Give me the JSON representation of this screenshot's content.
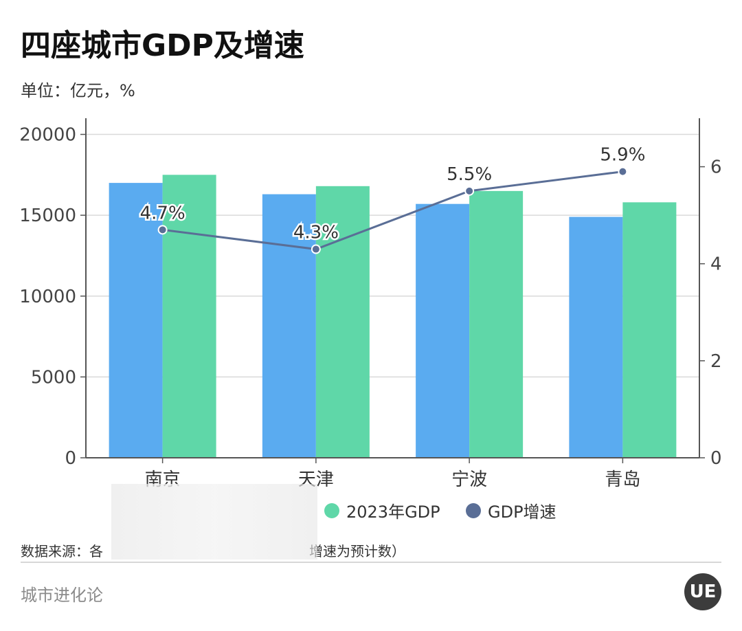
{
  "title": "四座城市GDP及增速",
  "subtitle": "单位：亿元，%",
  "source": "数据来源：各",
  "source_tail": "增速为预计数）",
  "footer": "城市进化论",
  "logo_text": "UE",
  "colors": {
    "gdp": "#5aabf0",
    "gdp2023": "#5fd7a8",
    "growth": "#5a6e96"
  },
  "chart_data": {
    "type": "bar",
    "categories": [
      "南京",
      "天津",
      "宁波",
      "青岛"
    ],
    "series": [
      {
        "name": "",
        "type": "bar",
        "axis": "left",
        "values": [
          17000,
          16300,
          15700,
          14900
        ]
      },
      {
        "name": "2023年GDP",
        "type": "bar",
        "axis": "left",
        "values": [
          17500,
          16800,
          16500,
          15800
        ]
      },
      {
        "name": "GDP增速",
        "type": "line",
        "axis": "right",
        "values": [
          4.7,
          4.3,
          5.5,
          5.9
        ],
        "labels": [
          "4.7%",
          "4.3%",
          "5.5%",
          "5.9%"
        ]
      }
    ],
    "y_left": {
      "ticks": [
        "0",
        "5000",
        "10000",
        "15000",
        "20000"
      ],
      "range": [
        0,
        21000
      ]
    },
    "y_right": {
      "ticks": [
        "0",
        "2",
        "4",
        "6"
      ],
      "range": [
        0,
        7
      ]
    },
    "grid": true,
    "legend": "bottom"
  }
}
